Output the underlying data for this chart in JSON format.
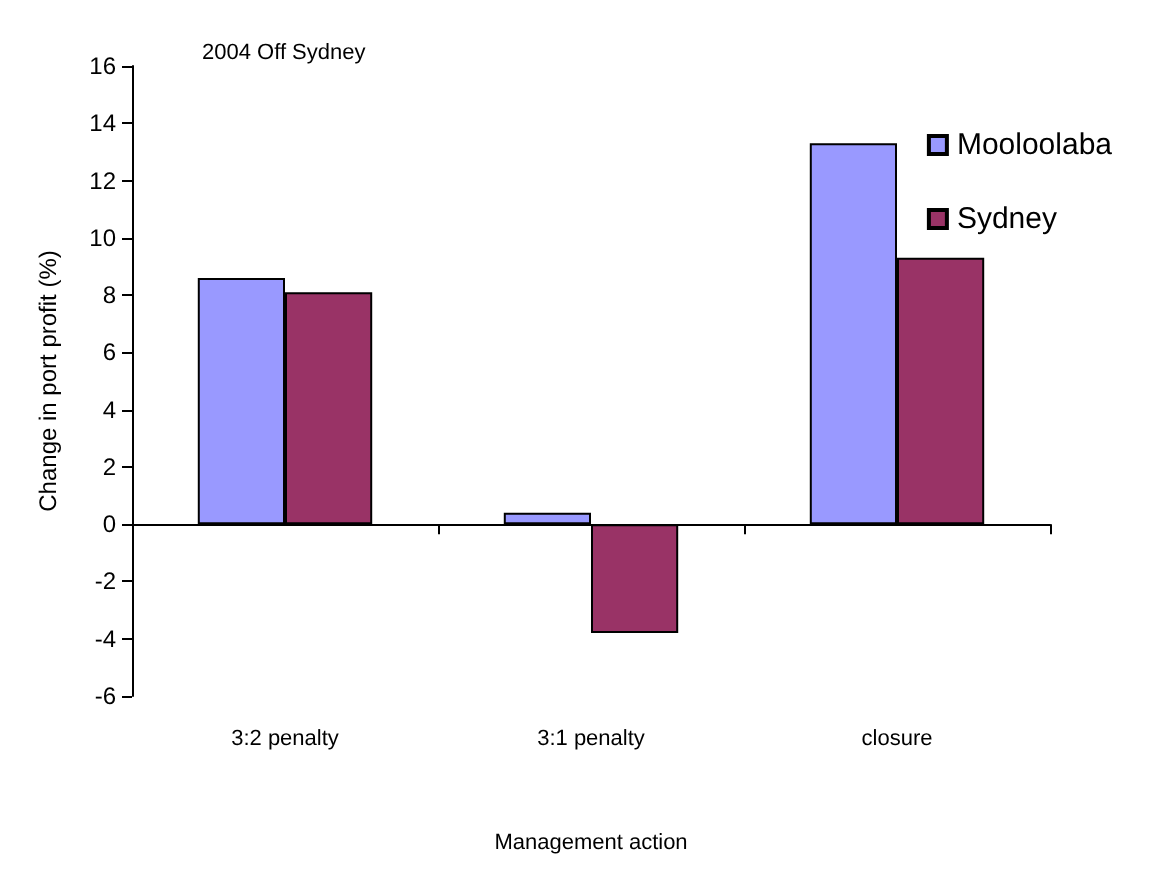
{
  "chart_data": {
    "type": "bar",
    "title": "2004 Off Sydney",
    "xlabel": "Management action",
    "ylabel": "Change in port profit (%)",
    "categories": [
      "3:2 penalty",
      "3:1 penalty",
      "closure"
    ],
    "series": [
      {
        "name": "Mooloolaba",
        "color": "#9999ff",
        "values": [
          8.6,
          0.4,
          13.3
        ]
      },
      {
        "name": "Sydney",
        "color": "#993366",
        "values": [
          8.1,
          -3.8,
          9.3
        ]
      }
    ],
    "ylim": [
      -6,
      16
    ],
    "yticks": [
      -6,
      -4,
      -2,
      0,
      2,
      4,
      6,
      8,
      10,
      12,
      14,
      16
    ],
    "legend": "top right"
  }
}
